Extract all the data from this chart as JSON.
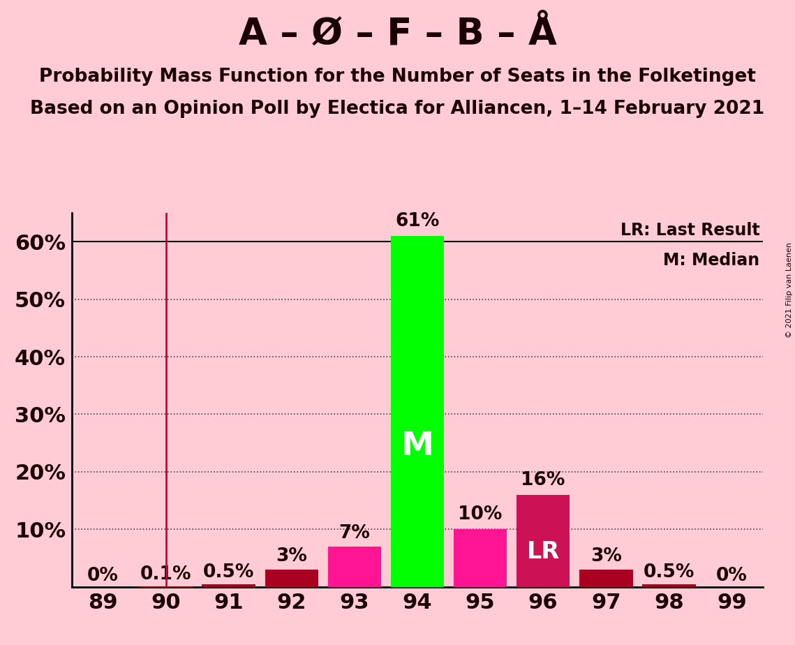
{
  "title1": "A – Ø – F – B – Å",
  "title2": "Probability Mass Function for the Number of Seats in the Folketinget",
  "title3": "Based on an Opinion Poll by Electica for Alliancen, 1–14 February 2021",
  "copyright": "© 2021 Filip van Laenen",
  "seats": [
    89,
    90,
    91,
    92,
    93,
    94,
    95,
    96,
    97,
    98,
    99
  ],
  "values": [
    0.0,
    0.1,
    0.5,
    3.0,
    7.0,
    61.0,
    10.0,
    16.0,
    3.0,
    0.5,
    0.0
  ],
  "labels": [
    "0%",
    "0.1%",
    "0.5%",
    "3%",
    "7%",
    "61%",
    "10%",
    "16%",
    "3%",
    "0.5%",
    "0%"
  ],
  "bar_colors": [
    "#aa0022",
    "#aa0022",
    "#aa0022",
    "#aa0022",
    "#ff1493",
    "#00ff00",
    "#ff1493",
    "#cc1155",
    "#aa0022",
    "#aa0022",
    "#aa0022"
  ],
  "median_seat": 94,
  "lr_seat": 96,
  "lr_label": "LR",
  "median_label": "M",
  "lr_line_seat": 90,
  "background_color": "#ffccd5",
  "plot_bg_color": "#ffccd5",
  "lr_legend": "LR: Last Result",
  "m_legend": "M: Median",
  "vline_color": "#cc0033",
  "ylim": [
    0,
    65
  ],
  "ytick_positions": [
    0,
    10,
    20,
    30,
    40,
    50,
    60
  ],
  "ytick_labels": [
    "",
    "10%",
    "20%",
    "30%",
    "40%",
    "50%",
    "60%"
  ],
  "solid_grid": [
    60
  ],
  "dotted_grid": [
    10,
    20,
    30,
    40,
    50
  ],
  "xlabel_fontsize": 22,
  "ylabel_fontsize": 22,
  "title1_fontsize": 38,
  "title2_fontsize": 19,
  "title3_fontsize": 19,
  "bar_label_fontsize": 19,
  "legend_fontsize": 17
}
